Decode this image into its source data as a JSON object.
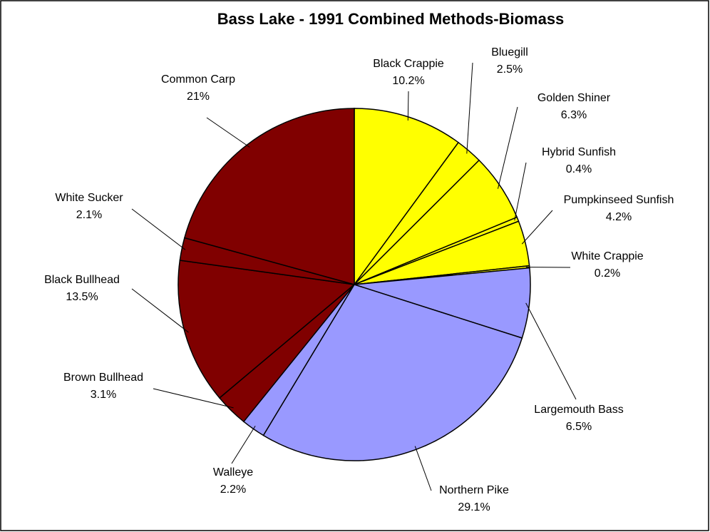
{
  "chart_data": {
    "type": "pie",
    "title": "Bass Lake - 1991 Combined Methods-Biomass",
    "categories": [
      "Black Crappie",
      "Bluegill",
      "Golden Shiner",
      "Hybrid Sunfish",
      "Pumpkinseed Sunfish",
      "White Crappie",
      "Largemouth Bass",
      "Northern Pike",
      "Walleye",
      "Brown Bullhead",
      "Black Bullhead",
      "White Sucker",
      "Common Carp"
    ],
    "values": [
      10.2,
      2.5,
      6.3,
      0.4,
      4.2,
      0.2,
      6.5,
      29.1,
      2.2,
      3.1,
      13.5,
      2.1,
      21
    ],
    "value_labels": [
      "10.2%",
      "2.5%",
      "6.3%",
      "0.4%",
      "4.2%",
      "0.2%",
      "6.5%",
      "29.1%",
      "2.2%",
      "3.1%",
      "13.5%",
      "2.1%",
      "21%"
    ],
    "colors": [
      "#ffff00",
      "#ffff00",
      "#ffff00",
      "#ffff00",
      "#ffff00",
      "#ffff00",
      "#9999ff",
      "#9999ff",
      "#9999ff",
      "#800000",
      "#800000",
      "#800000",
      "#800000"
    ]
  }
}
